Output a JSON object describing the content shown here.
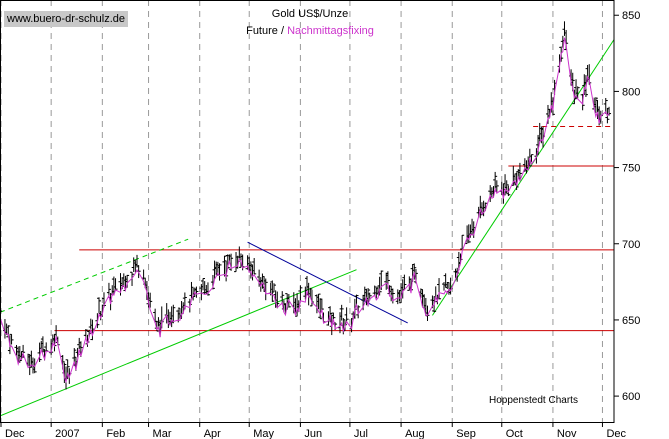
{
  "watermark": "www.buero-dr-schulz.de",
  "title": "Gold US$/Unze",
  "subtitle": {
    "part1": "Future",
    "sep": " / ",
    "part2": "Nachmittagsfixing"
  },
  "source": "Hoppenstedt Charts",
  "colors": {
    "bars": "#000000",
    "fixing": "#cc33cc",
    "support_resistance": "#cc0000",
    "trend_up": "#00cc00",
    "trend_down": "#000099",
    "grid": "#999999",
    "watermark_bg": "#c8c8c8"
  },
  "chart_data": {
    "type": "line",
    "title": "Gold US$/Unze",
    "series": [
      {
        "name": "Future",
        "style": "ohlc-bars"
      },
      {
        "name": "Nachmittagsfixing",
        "style": "line"
      }
    ],
    "y_axis": {
      "position": "right",
      "ticks": [
        600,
        650,
        700,
        750,
        800,
        850
      ],
      "ylim": [
        583,
        860
      ]
    },
    "x_axis": {
      "ticks": [
        "Dec",
        "2007",
        "Feb",
        "Mar",
        "Apr",
        "May",
        "Jun",
        "Jul",
        "Aug",
        "Sep",
        "Oct",
        "Nov",
        "Dec"
      ],
      "range": [
        "2006-12-01",
        "2007-12-08"
      ]
    },
    "grid": "vertical-dashed",
    "price_path": [
      [
        "2006-12-01",
        655
      ],
      [
        "2006-12-10",
        630
      ],
      [
        "2006-12-20",
        622
      ],
      [
        "2006-12-28",
        632
      ],
      [
        "2007-01-05",
        640
      ],
      [
        "2007-01-10",
        612
      ],
      [
        "2007-01-16",
        625
      ],
      [
        "2007-01-25",
        645
      ],
      [
        "2007-02-05",
        665
      ],
      [
        "2007-02-15",
        678
      ],
      [
        "2007-02-25",
        688
      ],
      [
        "2007-03-01",
        665
      ],
      [
        "2007-03-06",
        645
      ],
      [
        "2007-03-15",
        655
      ],
      [
        "2007-03-25",
        662
      ],
      [
        "2007-04-05",
        672
      ],
      [
        "2007-04-15",
        685
      ],
      [
        "2007-04-25",
        692
      ],
      [
        "2007-05-01",
        685
      ],
      [
        "2007-05-10",
        675
      ],
      [
        "2007-05-20",
        662
      ],
      [
        "2007-05-30",
        660
      ],
      [
        "2007-06-05",
        672
      ],
      [
        "2007-06-12",
        658
      ],
      [
        "2007-06-20",
        650
      ],
      [
        "2007-06-30",
        648
      ],
      [
        "2007-07-05",
        658
      ],
      [
        "2007-07-15",
        668
      ],
      [
        "2007-07-22",
        678
      ],
      [
        "2007-07-30",
        666
      ],
      [
        "2007-08-05",
        672
      ],
      [
        "2007-08-10",
        680
      ],
      [
        "2007-08-16",
        660
      ],
      [
        "2007-08-25",
        668
      ],
      [
        "2007-09-01",
        672
      ],
      [
        "2007-09-08",
        700
      ],
      [
        "2007-09-15",
        715
      ],
      [
        "2007-09-25",
        735
      ],
      [
        "2007-10-05",
        738
      ],
      [
        "2007-10-15",
        750
      ],
      [
        "2007-10-25",
        770
      ],
      [
        "2007-11-01",
        795
      ],
      [
        "2007-11-08",
        840
      ],
      [
        "2007-11-12",
        808
      ],
      [
        "2007-11-18",
        790
      ],
      [
        "2007-11-22",
        812
      ],
      [
        "2007-11-28",
        785
      ],
      [
        "2007-12-05",
        790
      ]
    ],
    "horizontal_lines": [
      {
        "value": 643,
        "from": "2007-01-03",
        "to": "2007-12-08",
        "style": "solid",
        "color": "support_resistance"
      },
      {
        "value": 696,
        "from": "2007-01-18",
        "to": "2007-12-08",
        "style": "solid",
        "color": "support_resistance"
      },
      {
        "value": 751,
        "from": "2007-10-05",
        "to": "2007-12-08",
        "style": "solid",
        "color": "support_resistance"
      },
      {
        "value": 777,
        "from": "2007-10-20",
        "to": "2007-12-08",
        "style": "dashed",
        "color": "support_resistance"
      }
    ],
    "trend_lines": [
      {
        "from": [
          "2006-12-01",
          587
        ],
        "to": [
          "2007-07-05",
          683
        ],
        "style": "solid",
        "color": "trend_up"
      },
      {
        "from": [
          "2006-12-01",
          655
        ],
        "to": [
          "2007-03-25",
          703
        ],
        "style": "dashed",
        "color": "trend_up"
      },
      {
        "from": [
          "2007-04-30",
          701
        ],
        "to": [
          "2007-08-05",
          648
        ],
        "style": "solid",
        "color": "trend_down"
      },
      {
        "from": [
          "2007-08-20",
          653
        ],
        "to": [
          "2007-12-08",
          834
        ],
        "style": "solid",
        "color": "trend_up"
      }
    ]
  }
}
